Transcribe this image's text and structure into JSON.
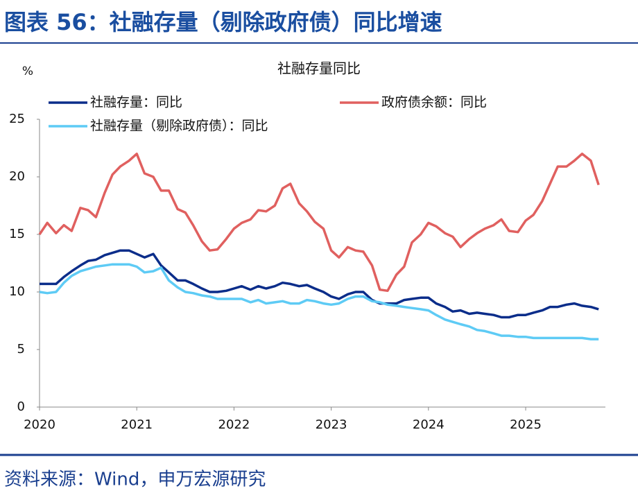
{
  "header": {
    "title": "图表 56：社融存量（剔除政府债）同比增速"
  },
  "chart_data": {
    "type": "line",
    "title": "社融存量同比",
    "y_unit": "%",
    "x": [
      2020,
      2020.08,
      2020.17,
      2020.25,
      2020.33,
      2020.42,
      2020.5,
      2020.58,
      2020.67,
      2020.75,
      2020.83,
      2020.92,
      2021,
      2021.08,
      2021.17,
      2021.25,
      2021.33,
      2021.42,
      2021.5,
      2021.58,
      2021.67,
      2021.75,
      2021.83,
      2021.92,
      2022,
      2022.08,
      2022.17,
      2022.25,
      2022.33,
      2022.42,
      2022.5,
      2022.58,
      2022.67,
      2022.75,
      2022.83,
      2022.92,
      2023,
      2023.08,
      2023.17,
      2023.25,
      2023.33,
      2023.42,
      2023.5,
      2023.58,
      2023.67,
      2023.75,
      2023.83,
      2023.92,
      2024,
      2024.08,
      2024.17,
      2024.25,
      2024.33,
      2024.42,
      2024.5,
      2024.58,
      2024.67,
      2024.75,
      2024.83,
      2024.92,
      2025,
      2025.08,
      2025.17,
      2025.25,
      2025.33,
      2025.42,
      2025.5,
      2025.58,
      2025.67,
      2025.75
    ],
    "series": [
      {
        "name": "社融存量：同比",
        "color": "#0b2d8a",
        "values": [
          10.7,
          10.7,
          10.7,
          11.3,
          11.8,
          12.3,
          12.7,
          12.8,
          13.2,
          13.4,
          13.6,
          13.6,
          13.3,
          13.0,
          13.3,
          12.3,
          11.7,
          11.0,
          11.0,
          10.7,
          10.3,
          10.0,
          10.0,
          10.1,
          10.3,
          10.5,
          10.2,
          10.5,
          10.3,
          10.5,
          10.8,
          10.7,
          10.5,
          10.6,
          10.3,
          10.0,
          9.6,
          9.4,
          9.8,
          10.0,
          10.0,
          9.3,
          9.0,
          9.0,
          9.0,
          9.3,
          9.4,
          9.5,
          9.5,
          9.0,
          8.7,
          8.3,
          8.4,
          8.1,
          8.2,
          8.1,
          8.0,
          7.8,
          7.8,
          8.0,
          8.0,
          8.2,
          8.4,
          8.7,
          8.7,
          8.9,
          9.0,
          8.8,
          8.7,
          8.5
        ]
      },
      {
        "name": "政府债余额：同比",
        "color": "#e0605f",
        "values": [
          15.0,
          16.0,
          15.1,
          15.8,
          15.3,
          17.3,
          17.1,
          16.5,
          18.6,
          20.2,
          20.9,
          21.4,
          22.0,
          20.3,
          20.0,
          18.8,
          18.8,
          17.2,
          16.9,
          15.8,
          14.4,
          13.6,
          13.7,
          14.6,
          15.5,
          16.0,
          16.3,
          17.1,
          17.0,
          17.5,
          19.0,
          19.4,
          17.7,
          17.0,
          16.1,
          15.5,
          13.6,
          13.0,
          13.9,
          13.6,
          13.5,
          12.3,
          10.2,
          10.1,
          11.5,
          12.2,
          14.3,
          15.0,
          16.0,
          15.7,
          15.1,
          14.8,
          13.9,
          14.6,
          15.1,
          15.5,
          15.8,
          16.3,
          15.3,
          15.2,
          16.2,
          16.7,
          17.9,
          19.4,
          20.9,
          20.9,
          21.4,
          22.0,
          21.4,
          19.3
        ]
      },
      {
        "name": "社融存量（剔除政府债）：同比",
        "color": "#5ecbf5",
        "values": [
          10.0,
          9.9,
          10.0,
          10.8,
          11.4,
          11.8,
          12.0,
          12.2,
          12.3,
          12.4,
          12.4,
          12.4,
          12.2,
          11.7,
          11.8,
          12.1,
          11.0,
          10.4,
          10.0,
          9.9,
          9.7,
          9.6,
          9.4,
          9.4,
          9.4,
          9.4,
          9.1,
          9.3,
          9.0,
          9.1,
          9.2,
          9.0,
          9.0,
          9.3,
          9.2,
          9.0,
          8.9,
          9.0,
          9.4,
          9.6,
          9.6,
          9.2,
          9.1,
          8.9,
          8.8,
          8.7,
          8.6,
          8.5,
          8.4,
          8.0,
          7.6,
          7.4,
          7.2,
          7.0,
          6.7,
          6.6,
          6.4,
          6.2,
          6.2,
          6.1,
          6.1,
          6.0,
          6.0,
          6.0,
          6.0,
          6.0,
          6.0,
          6.0,
          5.9,
          5.9
        ]
      }
    ],
    "xlim": [
      2020,
      2025.82
    ],
    "xticks": [
      2020,
      2021,
      2022,
      2023,
      2024,
      2025
    ],
    "ylim": [
      0,
      25
    ],
    "yticks": [
      0,
      5,
      10,
      15,
      20,
      25
    ],
    "grid": false
  },
  "footer": {
    "source": "资料来源：Wind，申万宏源研究"
  }
}
